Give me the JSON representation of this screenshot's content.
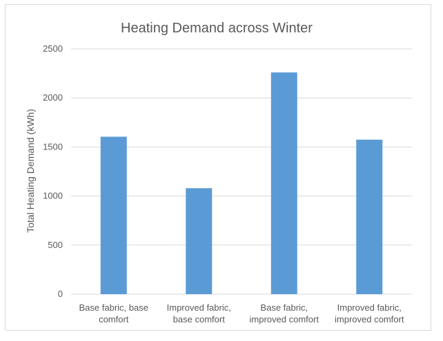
{
  "chart_data": {
    "type": "bar",
    "title": "Heating Demand across Winter",
    "xlabel": "",
    "ylabel": "Total Heating Demand (kWh)",
    "ylim": [
      0,
      2500
    ],
    "yticks": [
      0,
      500,
      1000,
      1500,
      2000,
      2500
    ],
    "grid": true,
    "legend": "none",
    "categories": [
      [
        "Base fabric, base",
        "comfort"
      ],
      [
        "Improved fabric,",
        "base comfort"
      ],
      [
        "Base fabric,",
        "improved comfort"
      ],
      [
        "Improved fabric,",
        "improved comfort"
      ]
    ],
    "values": [
      1605,
      1080,
      2260,
      1575
    ],
    "bar_color": "#5b9bd5"
  }
}
